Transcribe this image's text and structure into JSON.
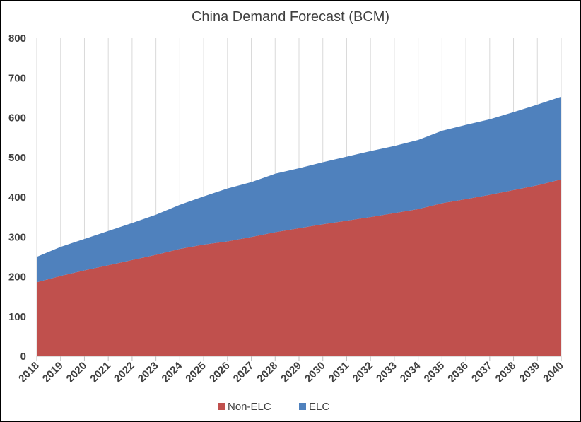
{
  "chart_data": {
    "type": "area",
    "stacked": true,
    "title": "China Demand Forecast (BCM)",
    "xlabel": "",
    "ylabel": "",
    "x": [
      "2018",
      "2019",
      "2020",
      "2021",
      "2022",
      "2023",
      "2024",
      "2025",
      "2026",
      "2027",
      "2028",
      "2029",
      "2030",
      "2031",
      "2032",
      "2033",
      "2034",
      "2035",
      "2036",
      "2037",
      "2038",
      "2039",
      "2040"
    ],
    "ylim": [
      0,
      800
    ],
    "yticks": [
      0,
      100,
      200,
      300,
      400,
      500,
      600,
      700,
      800
    ],
    "grid": "vertical gridlines",
    "legend": "bottom",
    "series": [
      {
        "name": "Non-ELC",
        "color": "#C0504D",
        "values": [
          186,
          202,
          216,
          229,
          242,
          255,
          270,
          281,
          289,
          300,
          312,
          322,
          332,
          341,
          350,
          360,
          370,
          385,
          395,
          406,
          418,
          430,
          445
        ]
      },
      {
        "name": "ELC",
        "color": "#4F81BD",
        "values": [
          64,
          73,
          79,
          86,
          93,
          101,
          111,
          121,
          133,
          138,
          147,
          151,
          156,
          161,
          166,
          169,
          174,
          182,
          187,
          190,
          196,
          203,
          208
        ]
      }
    ]
  }
}
